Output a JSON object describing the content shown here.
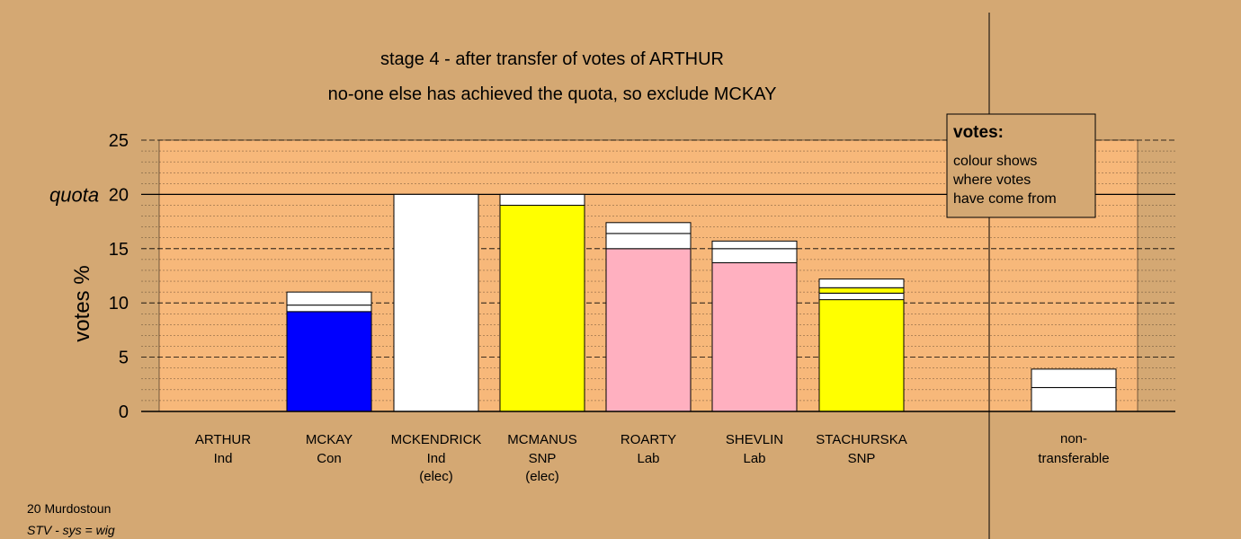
{
  "chart_data": {
    "type": "bar",
    "title": "stage 4 - after transfer of votes of ARTHUR",
    "subtitle": "no-one else has achieved the quota, so exclude MCKAY",
    "ylabel": "votes %",
    "quota_label": "quota",
    "quota": 20,
    "ylim": [
      0,
      25
    ],
    "yticks": [
      0,
      5,
      10,
      15,
      20,
      25
    ],
    "grid": true,
    "candidates": [
      {
        "name": "ARTHUR",
        "party": "Ind",
        "note": "",
        "segments": []
      },
      {
        "name": "MCKAY",
        "party": "Con",
        "note": "",
        "segments": [
          {
            "value": 9.2,
            "color": "#0000ff"
          },
          {
            "value": 0.6,
            "color": "#ffffff"
          },
          {
            "value": 1.2,
            "color": "#ffffff"
          }
        ]
      },
      {
        "name": "MCKENDRICK",
        "party": "Ind",
        "note": "(elec)",
        "segments": [
          {
            "value": 20.0,
            "color": "#ffffff"
          }
        ]
      },
      {
        "name": "MCMANUS",
        "party": "SNP",
        "note": "(elec)",
        "segments": [
          {
            "value": 19.0,
            "color": "#ffff00"
          },
          {
            "value": 1.0,
            "color": "#ffffff"
          }
        ]
      },
      {
        "name": "ROARTY",
        "party": "Lab",
        "note": "",
        "segments": [
          {
            "value": 15.0,
            "color": "#ffb0c0"
          },
          {
            "value": 1.4,
            "color": "#ffffff"
          },
          {
            "value": 1.0,
            "color": "#ffffff"
          }
        ]
      },
      {
        "name": "SHEVLIN",
        "party": "Lab",
        "note": "",
        "segments": [
          {
            "value": 13.7,
            "color": "#ffb0c0"
          },
          {
            "value": 1.3,
            "color": "#ffffff"
          },
          {
            "value": 0.7,
            "color": "#ffffff"
          }
        ]
      },
      {
        "name": "STACHURSKA",
        "party": "SNP",
        "note": "",
        "segments": [
          {
            "value": 10.3,
            "color": "#ffff00"
          },
          {
            "value": 0.6,
            "color": "#ffffff"
          },
          {
            "value": 0.5,
            "color": "#ffff00"
          },
          {
            "value": 0.8,
            "color": "#ffffff"
          }
        ]
      }
    ],
    "nontransferable": {
      "label_line1": "non-",
      "label_line2": "transferable",
      "segments": [
        {
          "value": 2.2,
          "color": "#ffffff"
        },
        {
          "value": 1.7,
          "color": "#ffffff"
        }
      ]
    },
    "legend": {
      "title": "votes:",
      "lines": [
        "colour shows",
        "where votes",
        "have come from"
      ],
      "placement": "top-right"
    }
  },
  "footer": {
    "line1": "20 Murdostoun",
    "line2": "STV - sys = wig"
  },
  "colors": {
    "background": "#d4a873",
    "plot_background": "#f7b87a"
  }
}
